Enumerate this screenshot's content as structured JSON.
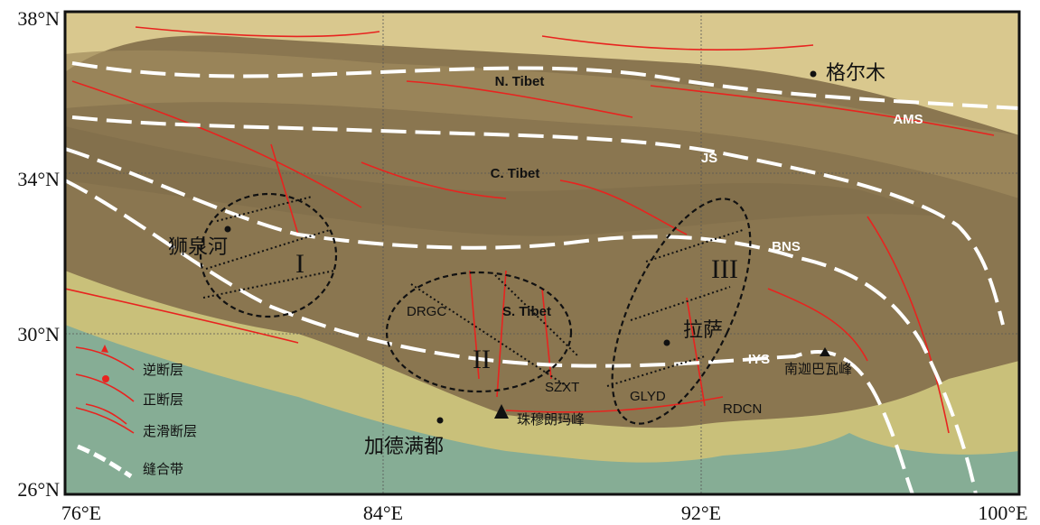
{
  "axes": {
    "lat_labels": [
      "38°N",
      "34°N",
      "30°N",
      "26°N"
    ],
    "lon_labels": [
      "76°E",
      "84°E",
      "92°E",
      "100°E"
    ]
  },
  "regions": [
    "N. Tibet",
    "C. Tibet",
    "S. Tibet"
  ],
  "sutures": [
    "AMS",
    "JS",
    "BNS",
    "IYS"
  ],
  "cities": [
    "格尔木",
    "狮泉河",
    "拉萨",
    "加德满都"
  ],
  "zones": [
    "I",
    "II",
    "III"
  ],
  "sites": [
    "DRGC",
    "SZXT",
    "GLYD",
    "RDCN"
  ],
  "peaks": [
    "南迦巴瓦峰",
    "珠穆朗玛峰"
  ],
  "legend": [
    "逆断层",
    "正断层",
    "走滑断层",
    "缝合带"
  ]
}
